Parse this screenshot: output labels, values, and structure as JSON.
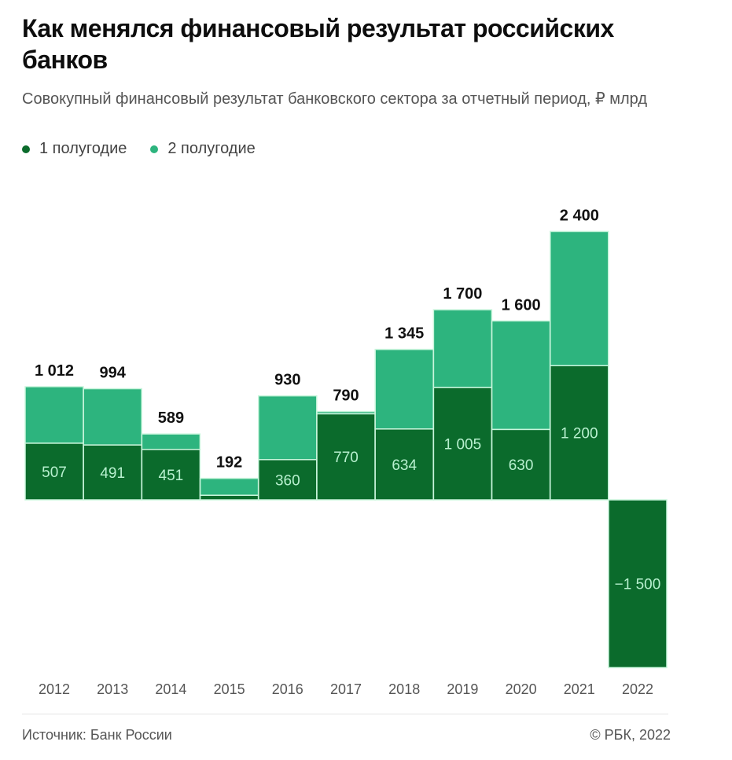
{
  "header": {
    "title": "Как менялся финансовый результат российских банков",
    "subtitle": "Совокупный финансовый результат банковского сектора за отчетный период, ₽ млрд"
  },
  "legend": {
    "h1": "1 полугодие",
    "h2": "2 полугодие"
  },
  "colors": {
    "h1": "#0b6b2c",
    "h2": "#2db47e",
    "bar_border": "#c9f5dc",
    "inner_label": "#b8f0cf"
  },
  "chart_data": {
    "type": "bar",
    "stacked": true,
    "categories": [
      "2012",
      "2013",
      "2014",
      "2015",
      "2016",
      "2017",
      "2018",
      "2019",
      "2020",
      "2021",
      "2022"
    ],
    "series": [
      {
        "name": "1 полугодие",
        "values": [
          507,
          491,
          451,
          41,
          360,
          770,
          634,
          1005,
          630,
          1200,
          -1500
        ]
      },
      {
        "name": "2 полугодие",
        "values": [
          505,
          503,
          138,
          151,
          570,
          20,
          711,
          695,
          970,
          1200,
          null
        ]
      }
    ],
    "inner_labels": [
      "507",
      "491",
      "451",
      "",
      "360",
      "770",
      "634",
      "1 005",
      "630",
      "1 200",
      "−1 500"
    ],
    "total_labels": [
      "1 012",
      "994",
      "589",
      "192",
      "930",
      "790",
      "1 345",
      "1 700",
      "1 600",
      "2 400",
      ""
    ],
    "ylim": [
      -1550,
      2500
    ],
    "xlabel": "",
    "ylabel": "",
    "grid": false
  },
  "footer": {
    "source": "Источник: Банк России",
    "copyright": "© РБК, 2022"
  }
}
